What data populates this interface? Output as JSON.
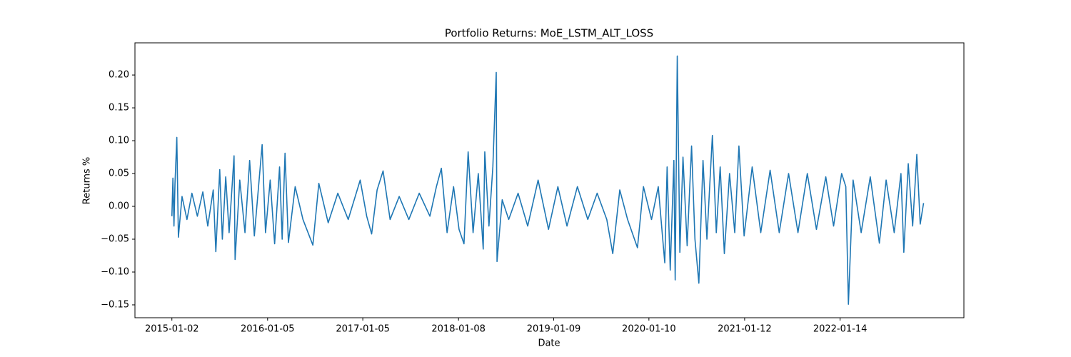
{
  "chart_data": {
    "type": "line",
    "title": "Portfolio Returns: MoE_LSTM_ALT_LOSS",
    "xlabel": "Date",
    "ylabel": "Returns %",
    "x": [
      "2015-01-02",
      "2015-01-06",
      "2015-01-10",
      "2015-01-14",
      "2015-01-21",
      "2015-01-27",
      "2015-02-10",
      "2015-03-01",
      "2015-03-20",
      "2015-04-10",
      "2015-05-01",
      "2015-05-20",
      "2015-06-10",
      "2015-06-20",
      "2015-07-05",
      "2015-07-15",
      "2015-07-28",
      "2015-08-10",
      "2015-08-29",
      "2015-09-02",
      "2015-09-20",
      "2015-10-10",
      "2015-10-28",
      "2015-11-15",
      "2015-12-15",
      "2015-12-28",
      "2016-01-15",
      "2016-02-01",
      "2016-02-20",
      "2016-03-01",
      "2016-03-12",
      "2016-03-25",
      "2016-04-20",
      "2016-05-20",
      "2016-06-27",
      "2016-07-20",
      "2016-08-25",
      "2016-10-01",
      "2016-11-10",
      "2016-12-26",
      "2017-01-20",
      "2017-02-08",
      "2017-03-01",
      "2017-03-24",
      "2017-04-20",
      "2017-05-25",
      "2017-07-01",
      "2017-08-10",
      "2017-09-20",
      "2017-10-15",
      "2017-11-03",
      "2017-11-25",
      "2017-12-20",
      "2018-01-10",
      "2018-01-29",
      "2018-02-14",
      "2018-03-05",
      "2018-03-25",
      "2018-04-13",
      "2018-04-19",
      "2018-05-05",
      "2018-05-20",
      "2018-06-02",
      "2018-06-05",
      "2018-06-25",
      "2018-07-20",
      "2018-08-25",
      "2018-10-01",
      "2018-11-10",
      "2018-12-20",
      "2019-01-25",
      "2019-03-01",
      "2019-04-10",
      "2019-05-20",
      "2019-06-25",
      "2019-08-01",
      "2019-08-24",
      "2019-09-20",
      "2019-10-20",
      "2019-11-27",
      "2019-12-20",
      "2020-01-20",
      "2020-02-15",
      "2020-03-01",
      "2020-03-11",
      "2020-03-20",
      "2020-04-01",
      "2020-04-15",
      "2020-04-20",
      "2020-04-28",
      "2020-05-08",
      "2020-05-20",
      "2020-06-05",
      "2020-06-22",
      "2020-07-05",
      "2020-07-20",
      "2020-08-05",
      "2020-08-20",
      "2020-09-10",
      "2020-09-25",
      "2020-10-10",
      "2020-10-26",
      "2020-11-15",
      "2020-12-05",
      "2020-12-21",
      "2021-01-10",
      "2021-02-10",
      "2021-03-15",
      "2021-04-20",
      "2021-05-25",
      "2021-06-30",
      "2021-08-05",
      "2021-09-10",
      "2021-10-15",
      "2021-11-20",
      "2021-12-20",
      "2022-01-20",
      "2022-02-05",
      "2022-02-15",
      "2022-03-05",
      "2022-04-05",
      "2022-05-10",
      "2022-06-14",
      "2022-07-10",
      "2022-08-10",
      "2022-09-05",
      "2022-09-16",
      "2022-10-03",
      "2022-10-20",
      "2022-11-05",
      "2022-11-18",
      "2022-12-01"
    ],
    "series": [
      {
        "name": "Returns",
        "color": "#1f77b4",
        "values": [
          -0.015,
          0.043,
          -0.03,
          0.035,
          0.105,
          -0.047,
          0.015,
          -0.02,
          0.02,
          -0.015,
          0.022,
          -0.03,
          0.025,
          -0.069,
          0.056,
          -0.05,
          0.045,
          -0.04,
          0.077,
          -0.081,
          0.04,
          -0.04,
          0.07,
          -0.045,
          0.094,
          -0.04,
          0.04,
          -0.057,
          0.06,
          -0.05,
          0.081,
          -0.055,
          0.03,
          -0.02,
          -0.059,
          0.035,
          -0.025,
          0.02,
          -0.02,
          0.04,
          -0.015,
          -0.042,
          0.025,
          0.054,
          -0.02,
          0.015,
          -0.02,
          0.02,
          -0.015,
          0.03,
          0.058,
          -0.04,
          0.03,
          -0.035,
          -0.057,
          0.083,
          -0.04,
          0.05,
          -0.065,
          0.083,
          -0.03,
          0.06,
          0.204,
          -0.084,
          0.01,
          -0.02,
          0.02,
          -0.03,
          0.04,
          -0.035,
          0.03,
          -0.03,
          0.03,
          -0.02,
          0.02,
          -0.02,
          -0.072,
          0.025,
          -0.02,
          -0.063,
          0.03,
          -0.02,
          0.03,
          -0.04,
          -0.086,
          0.06,
          -0.097,
          0.07,
          -0.112,
          0.229,
          -0.07,
          0.075,
          -0.06,
          0.092,
          -0.05,
          -0.117,
          0.07,
          -0.05,
          0.108,
          -0.04,
          0.06,
          -0.072,
          0.05,
          -0.04,
          0.092,
          -0.045,
          0.06,
          -0.04,
          0.055,
          -0.04,
          0.05,
          -0.04,
          0.05,
          -0.035,
          0.045,
          -0.03,
          0.05,
          0.03,
          -0.149,
          0.04,
          -0.04,
          0.045,
          -0.056,
          0.04,
          -0.04,
          0.05,
          -0.07,
          0.065,
          -0.03,
          0.079,
          -0.027,
          0.005
        ]
      }
    ],
    "xlim": [
      "2014-08-13",
      "2023-05-05"
    ],
    "xticks": [
      "2015-01-02",
      "2016-01-05",
      "2017-01-05",
      "2018-01-08",
      "2019-01-09",
      "2020-01-10",
      "2021-01-12",
      "2022-01-14"
    ],
    "ylim": [
      -0.1696,
      0.249
    ],
    "yticks": [
      {
        "value": -0.15,
        "label": "−0.15"
      },
      {
        "value": -0.1,
        "label": "−0.10"
      },
      {
        "value": -0.05,
        "label": "−0.05"
      },
      {
        "value": 0,
        "label": "0.00"
      },
      {
        "value": 0.05,
        "label": "0.05"
      },
      {
        "value": 0.1,
        "label": "0.10"
      },
      {
        "value": 0.15,
        "label": "0.15"
      },
      {
        "value": 0.2,
        "label": "0.20"
      }
    ],
    "grid": false
  }
}
